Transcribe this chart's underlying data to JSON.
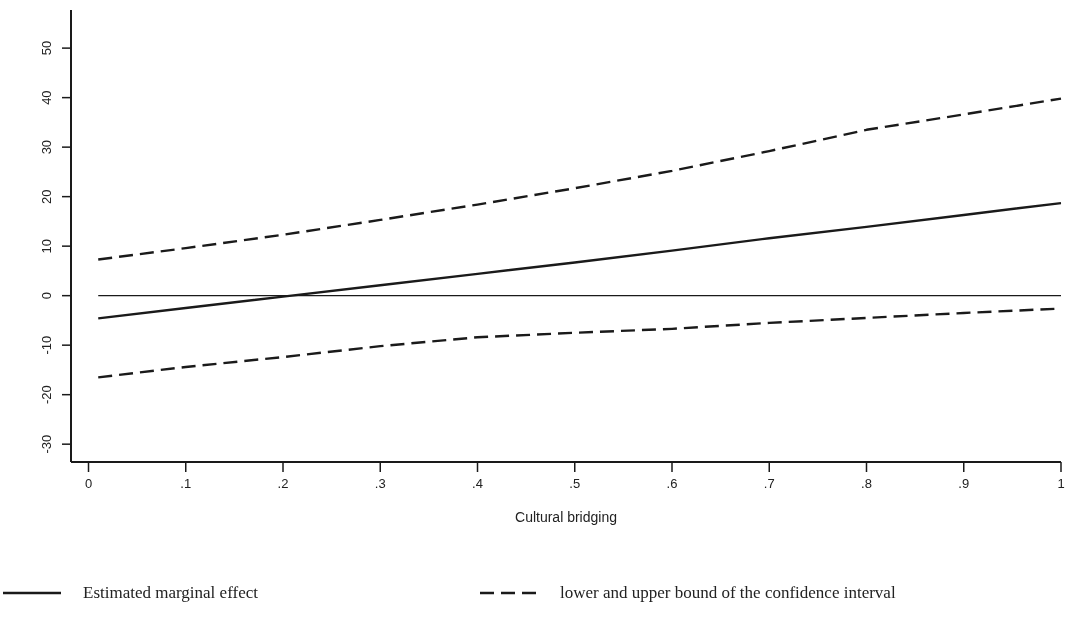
{
  "chart_data": {
    "type": "line",
    "xlabel": "Cultural bridging",
    "x": [
      0.01,
      0.1,
      0.2,
      0.3,
      0.4,
      0.5,
      0.6,
      0.7,
      0.8,
      0.9,
      1
    ],
    "series": [
      {
        "name": "Estimated marginal effect",
        "color": "#1a1a1a",
        "line_style": "solid",
        "values": [
          -4.6,
          -2.5,
          -0.2,
          2.1,
          4.4,
          6.7,
          9.1,
          11.6,
          13.9,
          16.3,
          18.7
        ]
      },
      {
        "name": "lower and upper bound of the confidence interval",
        "color": "#1a1a1a",
        "line_style": "dashed",
        "values": [
          7.3,
          9.6,
          12.3,
          15.3,
          18.4,
          21.7,
          25.2,
          29.2,
          33.5,
          36.6,
          39.8
        ]
      },
      {
        "color": "#1a1a1a",
        "line_style": "dashed",
        "values": [
          -16.5,
          -14.4,
          -12.4,
          -10.2,
          -8.4,
          -7.5,
          -6.7,
          -5.5,
          -4.5,
          -3.5,
          -2.6
        ]
      }
    ],
    "xlim": [
      -0.018,
      1
    ],
    "ylim": [
      -33.6,
      57.7
    ],
    "xticks": [
      0,
      {
        "value": 0.1,
        "label": ".1"
      },
      {
        "value": 0.2,
        "label": ".2"
      },
      {
        "value": 0.3,
        "label": ".3"
      },
      {
        "value": 0.4,
        "label": ".4"
      },
      {
        "value": 0.5,
        "label": ".5"
      },
      {
        "value": 0.6,
        "label": ".6"
      },
      {
        "value": 0.7,
        "label": ".7"
      },
      {
        "value": 0.8,
        "label": ".8"
      },
      {
        "value": 0.9,
        "label": ".9"
      },
      1
    ],
    "yticks": [
      -30,
      -20,
      -10,
      0,
      10,
      20,
      30,
      40,
      50
    ],
    "ref_lines": [
      {
        "axis": "y",
        "value": 0,
        "color": "#1a1a1a"
      }
    ],
    "grid": false,
    "legend": "bottom"
  }
}
